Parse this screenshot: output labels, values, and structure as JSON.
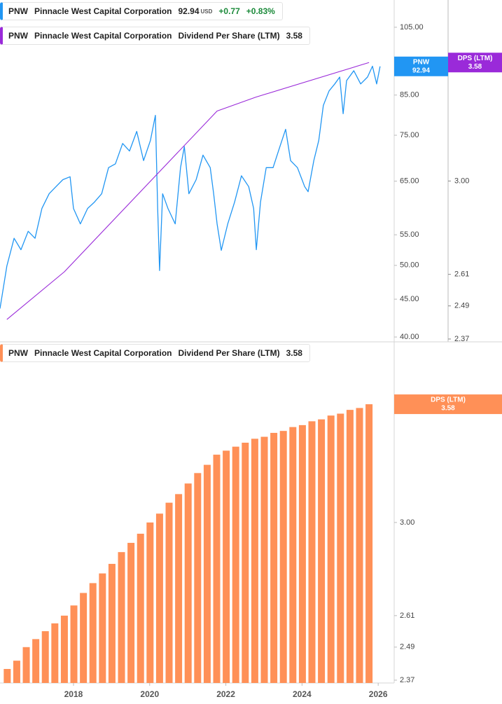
{
  "chart_data": [
    {
      "type": "line",
      "ticker": "PNW",
      "company": "Pinnacle West Capital Corporation",
      "last": 92.94,
      "currency": "USD",
      "change": "+0.77",
      "change_pct": "+0.83%",
      "dps_last": 3.58,
      "xlim": [
        2016.07,
        2026.42
      ],
      "ylim": [
        39.4,
        114.3
      ],
      "log_scale": true,
      "yticks": [
        {
          "value": 105,
          "label": "105.00"
        },
        {
          "value": 85,
          "label": "85.00"
        },
        {
          "value": 75,
          "label": "75.00"
        },
        {
          "value": 65,
          "label": "65.00"
        },
        {
          "value": 55,
          "label": "55.00"
        },
        {
          "value": 50,
          "label": "50.00"
        },
        {
          "value": 45,
          "label": "45.00"
        },
        {
          "value": 40,
          "label": "40.00"
        }
      ],
      "y2lim": [
        2.36,
        3.93
      ],
      "y2ticks": [
        {
          "value": 3,
          "label": "3.00"
        },
        2.61,
        2.49,
        2.37
      ],
      "series": [
        {
          "name": "PNW",
          "color": "#2196f3",
          "x": [
            2016.07,
            2016.25,
            2016.44,
            2016.62,
            2016.81,
            2016.99,
            2017.17,
            2017.36,
            2017.54,
            2017.72,
            2017.91,
            2018.0,
            2018.18,
            2018.37,
            2018.55,
            2018.74,
            2018.92,
            2019.1,
            2019.29,
            2019.47,
            2019.66,
            2019.84,
            2020.02,
            2020.15,
            2020.21,
            2020.26,
            2020.34,
            2020.48,
            2020.67,
            2020.81,
            2020.91,
            2021.03,
            2021.22,
            2021.4,
            2021.59,
            2021.68,
            2021.77,
            2021.88,
            2022.05,
            2022.23,
            2022.41,
            2022.6,
            2022.73,
            2022.8,
            2022.91,
            2023.06,
            2023.24,
            2023.42,
            2023.57,
            2023.7,
            2023.88,
            2024.07,
            2024.16,
            2024.31,
            2024.44,
            2024.56,
            2024.71,
            2024.86,
            2024.99,
            2025.08,
            2025.17,
            2025.36,
            2025.54,
            2025.72,
            2025.85,
            2025.96,
            2026.05
          ],
          "values": [
            43.7,
            49.9,
            54.4,
            52.5,
            55.6,
            54.4,
            59.7,
            62.5,
            63.9,
            65.3,
            65.9,
            59.7,
            56.9,
            59.7,
            60.9,
            62.5,
            67.8,
            68.6,
            73.1,
            71.4,
            75.9,
            69.3,
            73.8,
            79.8,
            59.7,
            49.2,
            62.5,
            59.7,
            56.9,
            67.8,
            72.4,
            62.5,
            65.3,
            70.5,
            67.8,
            62.5,
            56.9,
            52.4,
            56.9,
            60.9,
            66.1,
            63.9,
            59.7,
            52.5,
            60.9,
            67.8,
            67.8,
            72.4,
            76.4,
            69.3,
            67.8,
            63.9,
            62.9,
            69.3,
            73.8,
            82.3,
            86.1,
            88.0,
            89.9,
            80.2,
            88.9,
            91.7,
            88.0,
            89.9,
            93.0,
            88.0,
            92.94
          ]
        },
        {
          "name": "Dividend Per Share (LTM)",
          "color": "#9a2ad9",
          "axis": "y2",
          "x": [
            2016.25,
            2017.76,
            2021.77,
            2022.79,
            2025.76
          ],
          "values": [
            2.44,
            2.62,
            3.33,
            3.4,
            3.58
          ]
        }
      ],
      "badges": [
        {
          "label": "PNW",
          "value": 92.94
        },
        {
          "label": "DPS (LTM)",
          "value": 3.58
        }
      ]
    },
    {
      "type": "bar",
      "ticker": "PNW",
      "company": "Pinnacle West Capital Corporation",
      "last": 3.58,
      "xlim": [
        2016.07,
        2026.42
      ],
      "xticks": [
        2018,
        2020,
        2022,
        2024,
        2026
      ],
      "ylim": [
        2.36,
        3.93
      ],
      "log_scale": true,
      "yticks": [
        {
          "value": 3,
          "label": "3.00"
        },
        2.61,
        2.49,
        2.37
      ],
      "series": [
        {
          "name": "Dividend Per Share (LTM)",
          "color": "#ff9057",
          "x": [
            2016.26,
            2016.51,
            2016.76,
            2017.01,
            2017.26,
            2017.51,
            2017.76,
            2018.01,
            2018.26,
            2018.51,
            2018.76,
            2019.01,
            2019.26,
            2019.51,
            2019.76,
            2020.01,
            2020.26,
            2020.51,
            2020.76,
            2021.01,
            2021.26,
            2021.51,
            2021.76,
            2022.01,
            2022.26,
            2022.51,
            2022.76,
            2023.01,
            2023.26,
            2023.51,
            2023.76,
            2024.01,
            2024.26,
            2024.51,
            2024.76,
            2025.01,
            2025.26,
            2025.51,
            2025.76
          ],
          "values": [
            2.41,
            2.44,
            2.49,
            2.52,
            2.55,
            2.58,
            2.61,
            2.65,
            2.7,
            2.74,
            2.78,
            2.82,
            2.87,
            2.91,
            2.95,
            3.0,
            3.04,
            3.09,
            3.13,
            3.18,
            3.23,
            3.27,
            3.32,
            3.34,
            3.36,
            3.38,
            3.4,
            3.41,
            3.43,
            3.44,
            3.46,
            3.47,
            3.49,
            3.5,
            3.52,
            3.53,
            3.55,
            3.56,
            3.58
          ]
        }
      ],
      "badges": [
        {
          "label": "DPS (LTM)",
          "value": 3.58
        }
      ]
    }
  ]
}
